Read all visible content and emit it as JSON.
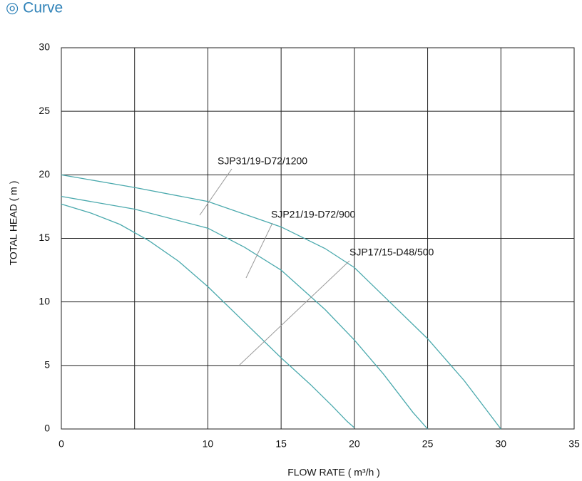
{
  "chart_data": {
    "type": "line",
    "title": "◎ Curve",
    "x_label": "FLOW RATE ( m³/h )",
    "y_label": "TOTAL HEAD ( m )",
    "xlim": [
      0,
      35
    ],
    "xticks": [
      0,
      10,
      15,
      20,
      25,
      30,
      35
    ],
    "ylim": [
      0,
      30
    ],
    "yticks": [
      0,
      5,
      10,
      15,
      20,
      25,
      30
    ],
    "xgrid": [
      0,
      5,
      10,
      15,
      20,
      25,
      30,
      35
    ],
    "grid": true,
    "series": [
      {
        "name": "SJP31/19-D72/1200",
        "color": "#4aa9ad",
        "x": [
          0,
          5,
          10,
          15,
          18,
          20,
          22.5,
          25,
          27.5,
          30
        ],
        "values": [
          20,
          19,
          17.9,
          15.9,
          14.2,
          12.7,
          9.9,
          7.1,
          3.8,
          0
        ]
      },
      {
        "name": "SJP21/19-D72/900",
        "color": "#4aa9ad",
        "x": [
          0,
          5,
          10,
          12.5,
          15,
          18,
          20,
          22,
          24,
          25
        ],
        "values": [
          18.3,
          17.3,
          15.8,
          14.3,
          12.5,
          9.4,
          7,
          4.3,
          1.3,
          0
        ]
      },
      {
        "name": "SJP17/15-D48/500",
        "color": "#4aa9ad",
        "x": [
          0,
          2,
          4,
          6,
          8,
          10,
          12.5,
          15,
          17,
          18.5,
          19.5,
          20
        ],
        "values": [
          17.7,
          17,
          16.1,
          14.8,
          13.2,
          11.2,
          8.4,
          5.6,
          3.5,
          1.8,
          0.6,
          0.1
        ]
      }
    ]
  }
}
